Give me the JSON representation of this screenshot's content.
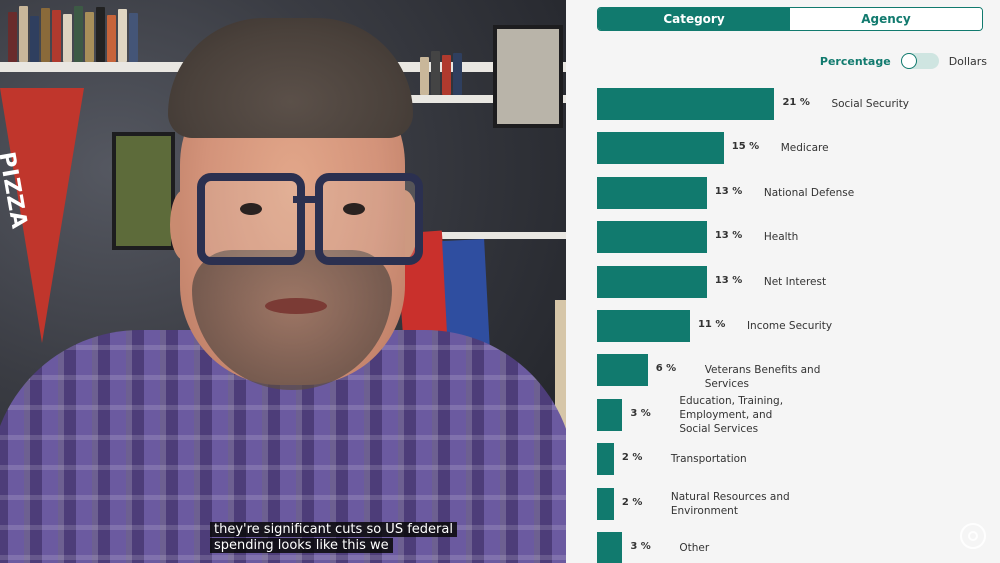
{
  "video": {
    "pennant_text": "PIZZA",
    "captions": [
      "they're significant cuts so US federal",
      "spending looks like this we"
    ]
  },
  "tabs": [
    {
      "label": "Category",
      "active": true
    },
    {
      "label": "Agency",
      "active": false
    }
  ],
  "toggle": {
    "left_label": "Percentage",
    "right_label": "Dollars",
    "selected": "Percentage"
  },
  "colors": {
    "accent": "#117a6e",
    "panel_bg": "#f5f5f5",
    "caption_bg": "#0d0d0d"
  },
  "icons": {
    "watermark": "circle-emblem-icon"
  },
  "chart_data": {
    "type": "bar",
    "orientation": "horizontal",
    "categories": [
      "Social Security",
      "Medicare",
      "National Defense",
      "Health",
      "Net Interest",
      "Income Security",
      "Veterans Benefits and Services",
      "Education, Training, Employment, and Social Services",
      "Transportation",
      "Natural Resources and Environment",
      "Other"
    ],
    "values": [
      21,
      15,
      13,
      13,
      13,
      11,
      6,
      3,
      2,
      2,
      3
    ],
    "value_labels": [
      "21 %",
      "15 %",
      "13 %",
      "13 %",
      "13 %",
      "11 %",
      "6 %",
      "3 %",
      "2 %",
      "2 %",
      "3 %"
    ],
    "unit": "%",
    "title": "",
    "xlabel": "",
    "ylabel": ""
  }
}
